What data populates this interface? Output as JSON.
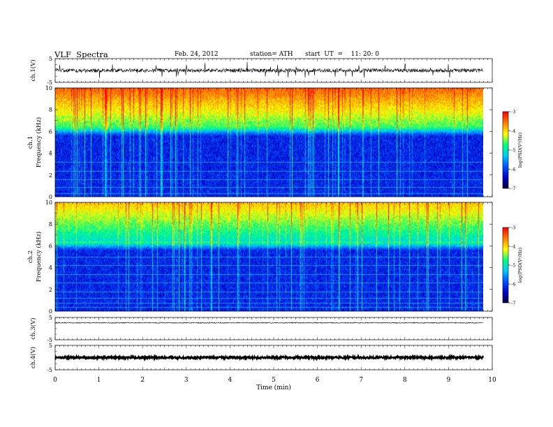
{
  "header": {
    "title": "VLF  Spectra",
    "date": "Feb. 24, 2012",
    "station": "station= ATH",
    "start": "start  UT  =    11: 20: 0"
  },
  "chart_data": {
    "type": "heatmap",
    "x": {
      "label": "Time  (min)",
      "range": [
        0,
        10
      ],
      "ticks": [
        "0",
        "1",
        "2",
        "3",
        "4",
        "5",
        "6",
        "7",
        "8",
        "9",
        "10"
      ]
    },
    "panels": [
      {
        "id": "ch1-waveform",
        "type": "line",
        "ylabel": "ch.1(V)",
        "ylim": [
          -5,
          5
        ],
        "yticks": [
          "5",
          "-5"
        ]
      },
      {
        "id": "ch1-spectrogram",
        "type": "heatmap",
        "ylabel": [
          "ch.1",
          "Frequency  (kHz)"
        ],
        "ylim": [
          0,
          10
        ],
        "yticks": [
          "0",
          "2",
          "4",
          "6",
          "8",
          "10"
        ],
        "colorbar": {
          "label": "log(PSD(V²/Hz)",
          "range": [
            -7,
            -3
          ],
          "ticks": [
            "-3",
            "-4",
            "-5",
            "-6",
            "-7"
          ]
        }
      },
      {
        "id": "ch2-spectrogram",
        "type": "heatmap",
        "ylabel": [
          "ch.2",
          "Frequency  (kHz)"
        ],
        "ylim": [
          0,
          10
        ],
        "yticks": [
          "0",
          "2",
          "4",
          "6",
          "8",
          "10"
        ],
        "colorbar": {
          "label": "log(PSD(V²/Hz)",
          "range": [
            -7,
            -3
          ],
          "ticks": [
            "-3",
            "-4",
            "-5",
            "-6",
            "-7"
          ]
        }
      },
      {
        "id": "ch3-waveform",
        "type": "line",
        "ylabel": "ch.3(V)",
        "ylim": [
          -5,
          5
        ],
        "yticks": [
          "5",
          "-5"
        ]
      },
      {
        "id": "ch4-waveform",
        "type": "line",
        "ylabel": "ch.4(V)",
        "ylim": [
          -5,
          5
        ],
        "yticks": [
          "5",
          "-5"
        ]
      }
    ],
    "data_end_min": 9.8,
    "colormap": [
      "#000033",
      "#0000c8",
      "#0050ff",
      "#00c8ff",
      "#00ff80",
      "#ffff00",
      "#ff8000",
      "#ff0000",
      "#ffffff"
    ]
  }
}
